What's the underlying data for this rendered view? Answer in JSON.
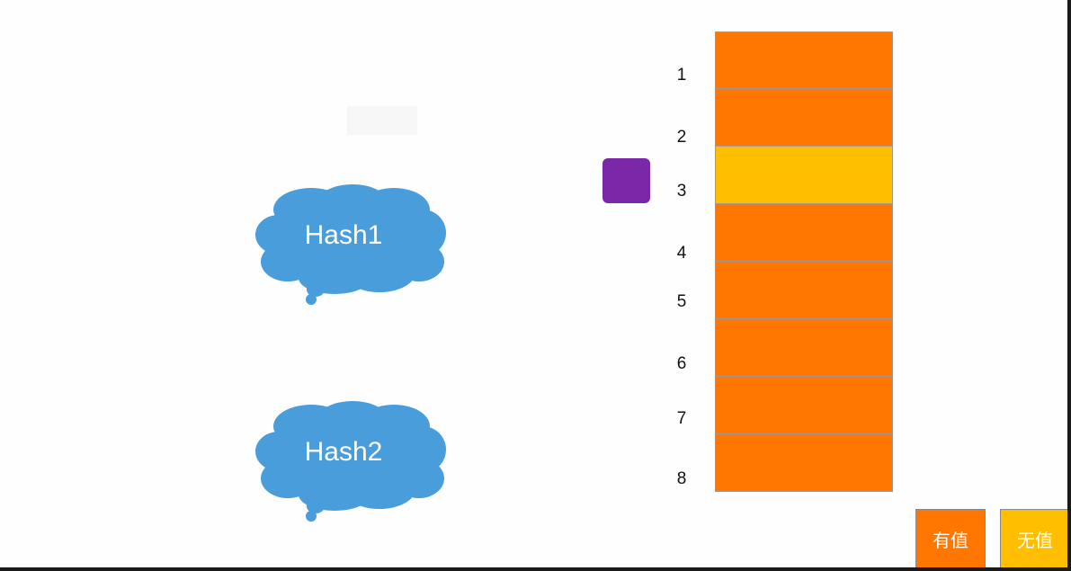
{
  "hashes": [
    {
      "label": "Hash1"
    },
    {
      "label": "Hash2"
    }
  ],
  "cloud_color": "#4a9ddb",
  "marker_color": "#7b28a8",
  "slots": [
    {
      "index": "1",
      "state": "filled"
    },
    {
      "index": "2",
      "state": "filled"
    },
    {
      "index": "3",
      "state": "empty"
    },
    {
      "index": "4",
      "state": "filled"
    },
    {
      "index": "5",
      "state": "filled"
    },
    {
      "index": "6",
      "state": "filled"
    },
    {
      "index": "7",
      "state": "filled"
    },
    {
      "index": "8",
      "state": "filled"
    }
  ],
  "state_colors": {
    "filled": "#ff7700",
    "empty": "#ffbf00"
  },
  "legend": [
    {
      "label": "有值",
      "state": "filled"
    },
    {
      "label": "无值",
      "state": "empty"
    }
  ]
}
